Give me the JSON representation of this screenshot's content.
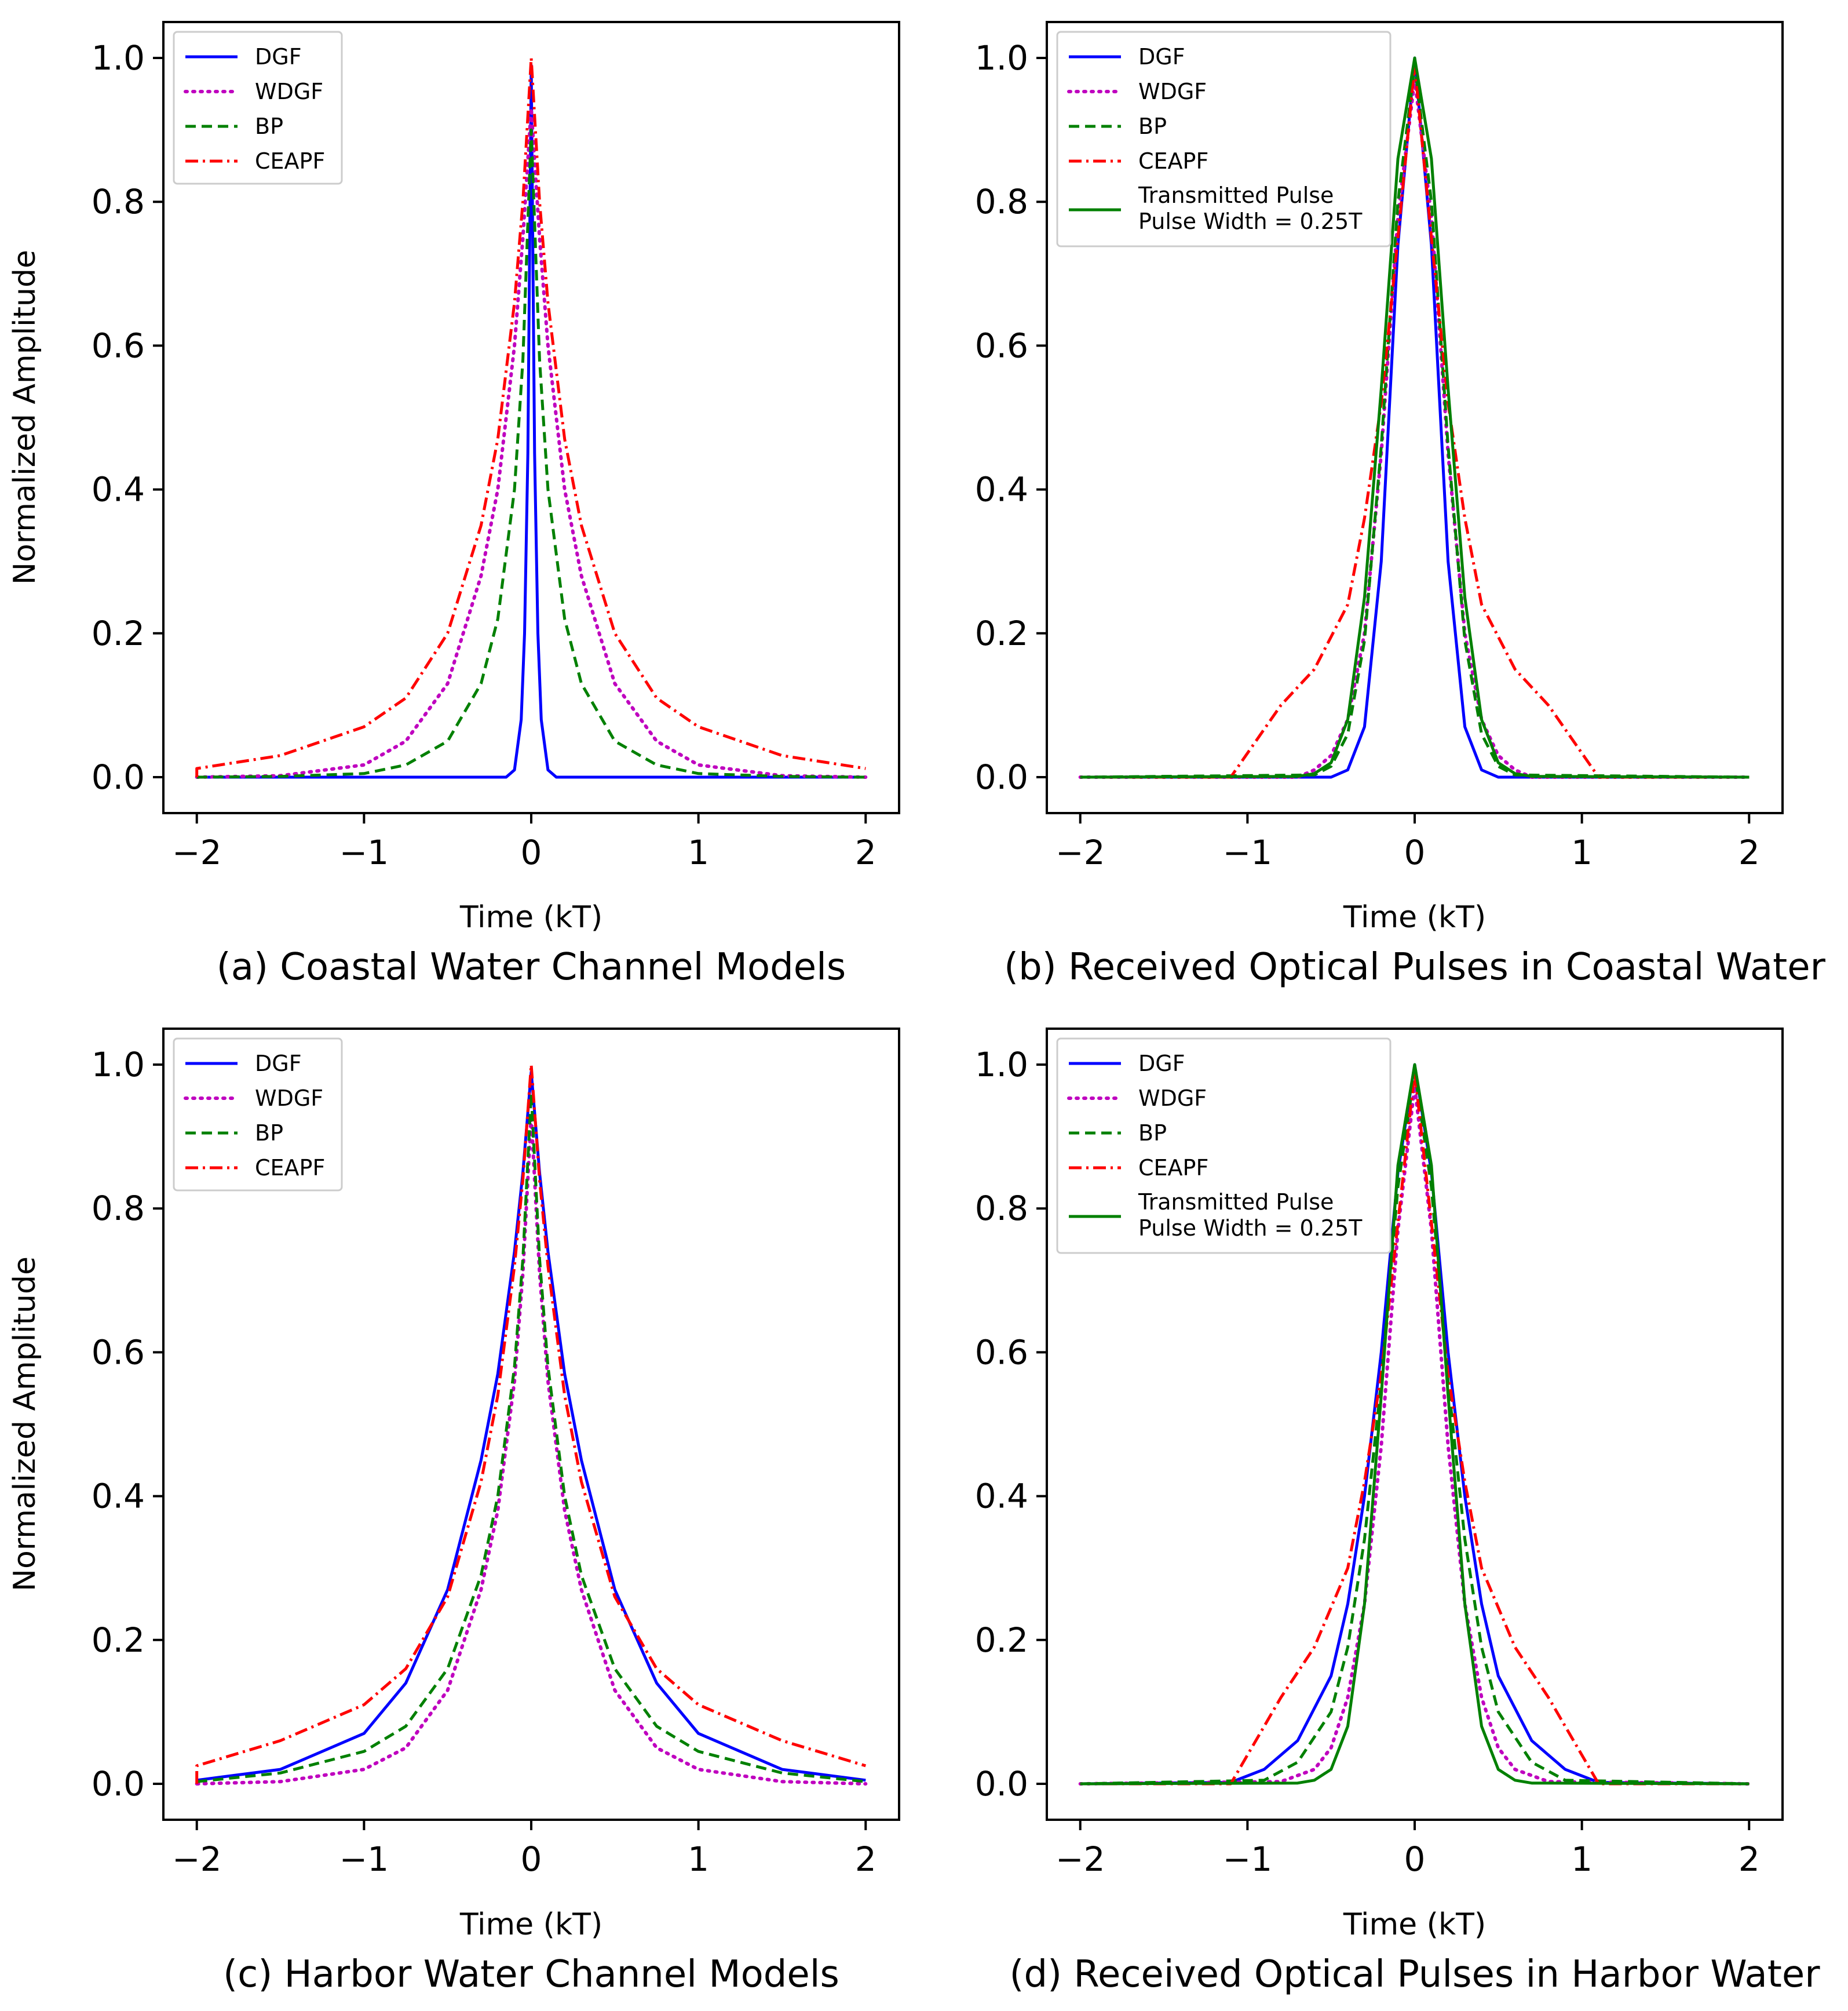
{
  "figure": {
    "panels": [
      {
        "id": "a",
        "caption": "(a) Coastal Water Channel Models",
        "ylabel": "Normalized Amplitude",
        "xlabel": "Time (kT)",
        "xticks": [
          "−2",
          "−1",
          "0",
          "1",
          "2"
        ],
        "yticks": [
          "0.0",
          "0.2",
          "0.4",
          "0.6",
          "0.8",
          "1.0"
        ]
      },
      {
        "id": "b",
        "caption": "(b) Received Optical Pulses in Coastal Water",
        "ylabel": "",
        "xlabel": "Time (kT)",
        "xticks": [
          "−2",
          "−1",
          "0",
          "1",
          "2"
        ],
        "yticks": [
          "0.0",
          "0.2",
          "0.4",
          "0.6",
          "0.8",
          "1.0"
        ]
      },
      {
        "id": "c",
        "caption": "(c) Harbor Water Channel Models",
        "ylabel": "Normalized Amplitude",
        "xlabel": "Time (kT)",
        "xticks": [
          "−2",
          "−1",
          "0",
          "1",
          "2"
        ],
        "yticks": [
          "0.0",
          "0.2",
          "0.4",
          "0.6",
          "0.8",
          "1.0"
        ]
      },
      {
        "id": "d",
        "caption": "(d) Received Optical Pulses in Harbor Water",
        "ylabel": "",
        "xlabel": "Time (kT)",
        "xticks": [
          "−2",
          "−1",
          "0",
          "1",
          "2"
        ],
        "yticks": [
          "0.0",
          "0.2",
          "0.4",
          "0.6",
          "0.8",
          "1.0"
        ]
      }
    ],
    "legend": {
      "DGF": "DGF",
      "WDGF": "WDGF",
      "BP": "BP",
      "CEAPF": "CEAPF",
      "tx_line1": "Transmitted Pulse",
      "tx_line2": "Pulse Width = 0.25T"
    }
  },
  "chart_data": [
    {
      "type": "line",
      "title": "(a) Coastal Water Channel Models",
      "xlabel": "Time (kT)",
      "ylabel": "Normalized Amplitude",
      "xlim": [
        -2.2,
        2.2
      ],
      "ylim": [
        -0.05,
        1.05
      ],
      "series": [
        {
          "name": "DGF",
          "color": "#0000ff",
          "style": "solid",
          "x": [
            -2,
            -0.15,
            -0.1,
            -0.06,
            -0.04,
            -0.02,
            0,
            0.02,
            0.04,
            0.06,
            0.1,
            0.15,
            2
          ],
          "y": [
            0,
            0,
            0.01,
            0.08,
            0.2,
            0.45,
            0.99,
            0.45,
            0.2,
            0.08,
            0.01,
            0,
            0
          ]
        },
        {
          "name": "WDGF",
          "color": "#bf00bf",
          "style": "dotted",
          "x": [
            -2,
            -1.5,
            -1,
            -0.75,
            -0.5,
            -0.3,
            -0.2,
            -0.1,
            -0.05,
            0,
            0.05,
            0.1,
            0.2,
            0.3,
            0.5,
            0.75,
            1,
            1.5,
            2
          ],
          "y": [
            0,
            0.002,
            0.017,
            0.05,
            0.13,
            0.28,
            0.4,
            0.6,
            0.75,
            0.93,
            0.75,
            0.6,
            0.4,
            0.28,
            0.13,
            0.05,
            0.017,
            0.002,
            0
          ]
        },
        {
          "name": "BP",
          "color": "#008000",
          "style": "dashed",
          "x": [
            -2,
            -1.5,
            -1,
            -0.75,
            -0.5,
            -0.3,
            -0.2,
            -0.1,
            -0.05,
            0,
            0.05,
            0.1,
            0.2,
            0.3,
            0.5,
            0.75,
            1,
            1.5,
            2
          ],
          "y": [
            0,
            0.001,
            0.005,
            0.017,
            0.05,
            0.13,
            0.22,
            0.4,
            0.58,
            0.9,
            0.58,
            0.4,
            0.22,
            0.13,
            0.05,
            0.017,
            0.005,
            0.001,
            0
          ]
        },
        {
          "name": "CEAPF",
          "color": "#ff0000",
          "style": "dashdot",
          "x": [
            -2,
            -2,
            -1.5,
            -1,
            -0.75,
            -0.5,
            -0.3,
            -0.2,
            -0.1,
            -0.05,
            0,
            0.05,
            0.1,
            0.2,
            0.3,
            0.5,
            0.75,
            1,
            1.5,
            2
          ],
          "y": [
            0,
            0.012,
            0.03,
            0.07,
            0.11,
            0.2,
            0.35,
            0.47,
            0.66,
            0.8,
            1.0,
            0.8,
            0.66,
            0.47,
            0.35,
            0.2,
            0.11,
            0.07,
            0.03,
            0.012
          ]
        }
      ]
    },
    {
      "type": "line",
      "title": "(b) Received Optical Pulses in Coastal Water",
      "xlabel": "Time (kT)",
      "ylabel": "",
      "xlim": [
        -2.2,
        2.2
      ],
      "ylim": [
        -0.05,
        1.05
      ],
      "series": [
        {
          "name": "DGF",
          "color": "#0000ff",
          "style": "solid",
          "x": [
            -2,
            -0.5,
            -0.4,
            -0.3,
            -0.2,
            -0.1,
            0,
            0.1,
            0.2,
            0.3,
            0.4,
            0.5,
            2
          ],
          "y": [
            0,
            0,
            0.01,
            0.07,
            0.3,
            0.74,
            1.0,
            0.74,
            0.3,
            0.07,
            0.01,
            0,
            0
          ]
        },
        {
          "name": "WDGF",
          "color": "#bf00bf",
          "style": "dotted",
          "x": [
            -2,
            -0.7,
            -0.6,
            -0.5,
            -0.4,
            -0.3,
            -0.2,
            -0.1,
            0,
            0.1,
            0.2,
            0.3,
            0.4,
            0.5,
            0.6,
            0.7,
            2
          ],
          "y": [
            0,
            0,
            0.01,
            0.03,
            0.08,
            0.2,
            0.45,
            0.78,
            0.97,
            0.78,
            0.45,
            0.2,
            0.08,
            0.03,
            0.01,
            0,
            0
          ]
        },
        {
          "name": "BP",
          "color": "#008000",
          "style": "dashed",
          "x": [
            -2,
            -0.6,
            -0.5,
            -0.4,
            -0.3,
            -0.2,
            -0.1,
            0,
            0.1,
            0.2,
            0.3,
            0.4,
            0.5,
            0.6,
            2
          ],
          "y": [
            0,
            0.003,
            0.015,
            0.06,
            0.19,
            0.46,
            0.8,
            0.99,
            0.8,
            0.46,
            0.19,
            0.06,
            0.015,
            0.003,
            0
          ]
        },
        {
          "name": "CEAPF",
          "color": "#ff0000",
          "style": "dashdot",
          "x": [
            -2,
            -1.1,
            -0.8,
            -0.6,
            -0.4,
            -0.3,
            -0.2,
            -0.1,
            0,
            0.1,
            0.2,
            0.3,
            0.4,
            0.6,
            0.8,
            1.1,
            2
          ],
          "y": [
            0,
            0,
            0.1,
            0.15,
            0.24,
            0.36,
            0.52,
            0.75,
            0.99,
            0.75,
            0.52,
            0.36,
            0.24,
            0.15,
            0.1,
            0,
            0
          ]
        },
        {
          "name": "Transmitted Pulse Pulse Width = 0.25T",
          "color": "#008000",
          "style": "solid",
          "x": [
            -2,
            -0.7,
            -0.6,
            -0.5,
            -0.4,
            -0.3,
            -0.2,
            -0.1,
            0,
            0.1,
            0.2,
            0.3,
            0.4,
            0.5,
            0.6,
            0.7,
            2
          ],
          "y": [
            0,
            0.001,
            0.005,
            0.02,
            0.08,
            0.25,
            0.54,
            0.86,
            1.0,
            0.86,
            0.54,
            0.25,
            0.08,
            0.02,
            0.005,
            0.001,
            0
          ]
        }
      ]
    },
    {
      "type": "line",
      "title": "(c) Harbor Water Channel Models",
      "xlabel": "Time (kT)",
      "ylabel": "Normalized Amplitude",
      "xlim": [
        -2.2,
        2.2
      ],
      "ylim": [
        -0.05,
        1.05
      ],
      "series": [
        {
          "name": "DGF",
          "color": "#0000ff",
          "style": "solid",
          "x": [
            -2,
            -1.5,
            -1,
            -0.75,
            -0.5,
            -0.3,
            -0.2,
            -0.1,
            -0.05,
            0,
            0.05,
            0.1,
            0.2,
            0.3,
            0.5,
            0.75,
            1,
            1.5,
            2
          ],
          "y": [
            0.005,
            0.02,
            0.07,
            0.14,
            0.27,
            0.45,
            0.57,
            0.74,
            0.85,
            0.99,
            0.85,
            0.74,
            0.57,
            0.45,
            0.27,
            0.14,
            0.07,
            0.02,
            0.005
          ]
        },
        {
          "name": "WDGF",
          "color": "#bf00bf",
          "style": "dotted",
          "x": [
            -2,
            -1.5,
            -1,
            -0.75,
            -0.5,
            -0.3,
            -0.2,
            -0.1,
            -0.05,
            0,
            0.05,
            0.1,
            0.2,
            0.3,
            0.5,
            0.75,
            1,
            1.5,
            2
          ],
          "y": [
            0,
            0.003,
            0.02,
            0.05,
            0.13,
            0.27,
            0.38,
            0.56,
            0.71,
            0.93,
            0.71,
            0.56,
            0.38,
            0.27,
            0.13,
            0.05,
            0.02,
            0.003,
            0
          ]
        },
        {
          "name": "BP",
          "color": "#008000",
          "style": "dashed",
          "x": [
            -2,
            -1.5,
            -1,
            -0.75,
            -0.5,
            -0.3,
            -0.2,
            -0.1,
            -0.05,
            0,
            0.05,
            0.1,
            0.2,
            0.3,
            0.5,
            0.75,
            1,
            1.5,
            2
          ],
          "y": [
            0.003,
            0.015,
            0.045,
            0.08,
            0.16,
            0.29,
            0.4,
            0.58,
            0.73,
            0.96,
            0.73,
            0.58,
            0.4,
            0.29,
            0.16,
            0.08,
            0.045,
            0.015,
            0.003
          ]
        },
        {
          "name": "CEAPF",
          "color": "#ff0000",
          "style": "dashdot",
          "x": [
            -2,
            -2,
            -1.5,
            -1,
            -0.75,
            -0.5,
            -0.3,
            -0.2,
            -0.1,
            -0.05,
            0,
            0.05,
            0.1,
            0.2,
            0.3,
            0.5,
            0.75,
            1,
            1.5,
            2
          ],
          "y": [
            0,
            0.025,
            0.06,
            0.11,
            0.16,
            0.26,
            0.42,
            0.54,
            0.72,
            0.84,
            1.0,
            0.84,
            0.72,
            0.54,
            0.42,
            0.26,
            0.16,
            0.11,
            0.06,
            0.025
          ]
        }
      ]
    },
    {
      "type": "line",
      "title": "(d) Received Optical Pulses in Harbor Water",
      "xlabel": "Time (kT)",
      "ylabel": "",
      "xlim": [
        -2.2,
        2.2
      ],
      "ylim": [
        -0.05,
        1.05
      ],
      "series": [
        {
          "name": "DGF",
          "color": "#0000ff",
          "style": "solid",
          "x": [
            -2,
            -1.1,
            -0.9,
            -0.7,
            -0.5,
            -0.4,
            -0.3,
            -0.2,
            -0.1,
            0,
            0.1,
            0.2,
            0.3,
            0.4,
            0.5,
            0.7,
            0.9,
            1.1,
            2
          ],
          "y": [
            0,
            0.002,
            0.02,
            0.06,
            0.15,
            0.25,
            0.4,
            0.6,
            0.85,
            1.0,
            0.85,
            0.6,
            0.4,
            0.25,
            0.15,
            0.06,
            0.02,
            0.002,
            0
          ]
        },
        {
          "name": "WDGF",
          "color": "#bf00bf",
          "style": "dotted",
          "x": [
            -2,
            -0.8,
            -0.6,
            -0.5,
            -0.4,
            -0.3,
            -0.2,
            -0.1,
            0,
            0.1,
            0.2,
            0.3,
            0.4,
            0.5,
            0.6,
            0.8,
            2
          ],
          "y": [
            0,
            0.003,
            0.02,
            0.05,
            0.12,
            0.25,
            0.47,
            0.77,
            0.97,
            0.77,
            0.47,
            0.25,
            0.12,
            0.05,
            0.02,
            0.003,
            0
          ]
        },
        {
          "name": "BP",
          "color": "#008000",
          "style": "dashed",
          "x": [
            -2,
            -0.9,
            -0.7,
            -0.5,
            -0.4,
            -0.3,
            -0.2,
            -0.1,
            0,
            0.1,
            0.2,
            0.3,
            0.4,
            0.5,
            0.7,
            0.9,
            2
          ],
          "y": [
            0,
            0.005,
            0.03,
            0.1,
            0.19,
            0.34,
            0.56,
            0.83,
            0.99,
            0.83,
            0.56,
            0.34,
            0.19,
            0.1,
            0.03,
            0.005,
            0
          ]
        },
        {
          "name": "CEAPF",
          "color": "#ff0000",
          "style": "dashdot",
          "x": [
            -2,
            -1.1,
            -0.8,
            -0.6,
            -0.4,
            -0.3,
            -0.2,
            -0.1,
            0,
            0.1,
            0.2,
            0.3,
            0.4,
            0.6,
            0.8,
            1.1,
            2
          ],
          "y": [
            0,
            0,
            0.12,
            0.19,
            0.3,
            0.42,
            0.57,
            0.78,
            0.99,
            0.78,
            0.57,
            0.42,
            0.3,
            0.19,
            0.12,
            0,
            0
          ]
        },
        {
          "name": "Transmitted Pulse Pulse Width = 0.25T",
          "color": "#008000",
          "style": "solid",
          "x": [
            -2,
            -0.7,
            -0.6,
            -0.5,
            -0.4,
            -0.3,
            -0.2,
            -0.1,
            0,
            0.1,
            0.2,
            0.3,
            0.4,
            0.5,
            0.6,
            0.7,
            2
          ],
          "y": [
            0,
            0.001,
            0.005,
            0.02,
            0.08,
            0.25,
            0.54,
            0.86,
            1.0,
            0.86,
            0.54,
            0.25,
            0.08,
            0.02,
            0.005,
            0.001,
            0
          ]
        }
      ]
    }
  ]
}
